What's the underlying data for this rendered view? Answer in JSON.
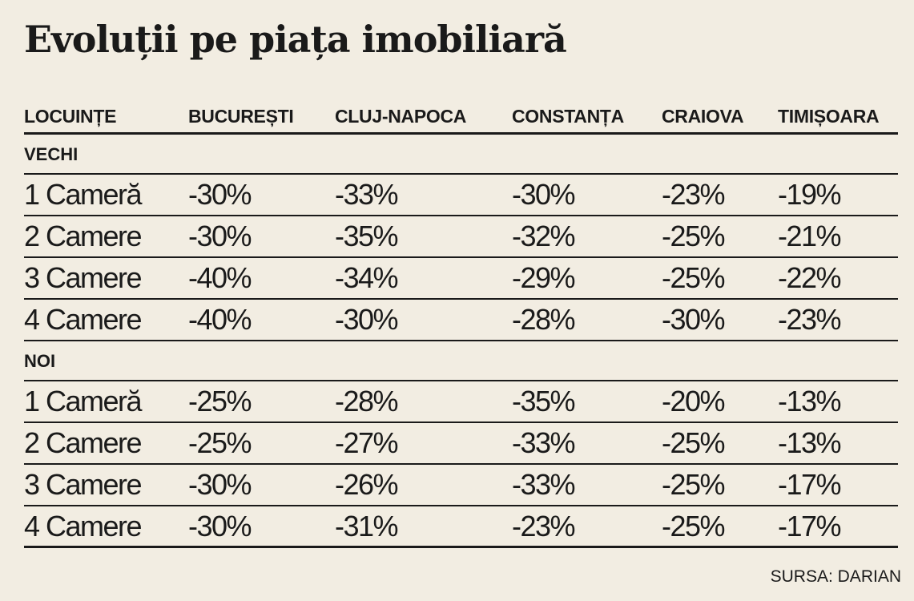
{
  "title": "Evoluții pe piața imobiliară",
  "source": "SURSA: DARIAN",
  "chart_data": {
    "type": "table",
    "title": "Evoluții pe piața imobiliară",
    "columns": [
      "LOCUINȚE",
      "BUCUREȘTI",
      "CLUJ-NAPOCA",
      "CONSTANȚA",
      "CRAIOVA",
      "TIMIȘOARA"
    ],
    "sections": [
      {
        "label": "VECHI",
        "rows": [
          [
            "1 Cameră",
            "-30%",
            "-33%",
            "-30%",
            "-23%",
            "-19%"
          ],
          [
            "2 Camere",
            "-30%",
            "-35%",
            "-32%",
            "-25%",
            "-21%"
          ],
          [
            "3 Camere",
            "-40%",
            "-34%",
            "-29%",
            "-25%",
            "-22%"
          ],
          [
            "4 Camere",
            "-40%",
            "-30%",
            "-28%",
            "-30%",
            "-23%"
          ]
        ]
      },
      {
        "label": "NOI",
        "rows": [
          [
            "1 Cameră",
            "-25%",
            "-28%",
            "-35%",
            "-20%",
            "-13%"
          ],
          [
            "2 Camere",
            "-25%",
            "-27%",
            "-33%",
            "-25%",
            "-13%"
          ],
          [
            "3 Camere",
            "-30%",
            "-26%",
            "-33%",
            "-25%",
            "-17%"
          ],
          [
            "4 Camere",
            "-30%",
            "-31%",
            "-23%",
            "-25%",
            "-17%"
          ]
        ]
      }
    ]
  }
}
